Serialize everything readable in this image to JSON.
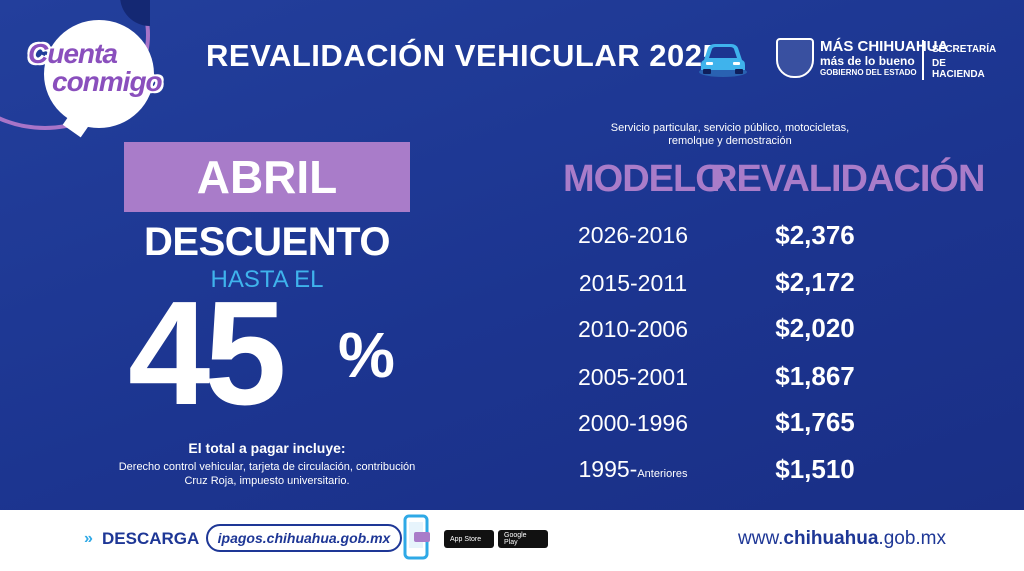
{
  "brand": {
    "cuenta": "Cuenta",
    "conmigo": "conmigo"
  },
  "header": {
    "title": "REVALIDACIÓN VEHICULAR 2025",
    "car_icon": "car-icon",
    "gov_line1": "MÁS CHIHUAHUA",
    "gov_line2": "más de lo bueno",
    "gov_line3": "GOBIERNO DEL ESTADO",
    "sec_line1": "SECRETARÍA",
    "sec_line2": "DE HACIENDA"
  },
  "promo": {
    "month": "ABRIL",
    "descuento": "DESCUENTO",
    "hasta": "HASTA EL",
    "percent_value": "45",
    "percent_sign": "%",
    "total_title": "El total a pagar incluye:",
    "total_desc": "Derecho control vehicular, tarjeta de circulación, contribución Cruz Roja, impuesto universitario."
  },
  "table": {
    "service_note": "Servicio particular, servicio público, motocicletas, remolque y demostración",
    "header_modelo": "MODELO",
    "header_revalidacion": "REVALIDACIÓN",
    "rows": [
      {
        "modelo": "2026-2016",
        "sub": "",
        "precio": "$2,376"
      },
      {
        "modelo": "2015-2011",
        "sub": "",
        "precio": "$2,172"
      },
      {
        "modelo": "2010-2006",
        "sub": "",
        "precio": "$2,020"
      },
      {
        "modelo": "2005-2001",
        "sub": "",
        "precio": "$1,867"
      },
      {
        "modelo": "2000-1996",
        "sub": "",
        "precio": "$1,765"
      },
      {
        "modelo": "1995-",
        "sub": "Anteriores",
        "precio": "$1,510"
      }
    ]
  },
  "footer": {
    "arrows": "»",
    "descarga": "DESCARGA",
    "url": "ipagos.chihuahua.gob.mx",
    "app_store": "App Store",
    "google_play": "Google Play",
    "site_prefix": "www.",
    "site_bold": "chihuahua",
    "site_suffix": ".gob.mx"
  },
  "colors": {
    "background": "#1e3796",
    "accent_purple": "#a97cc9",
    "accent_cyan": "#3fb3ec"
  }
}
